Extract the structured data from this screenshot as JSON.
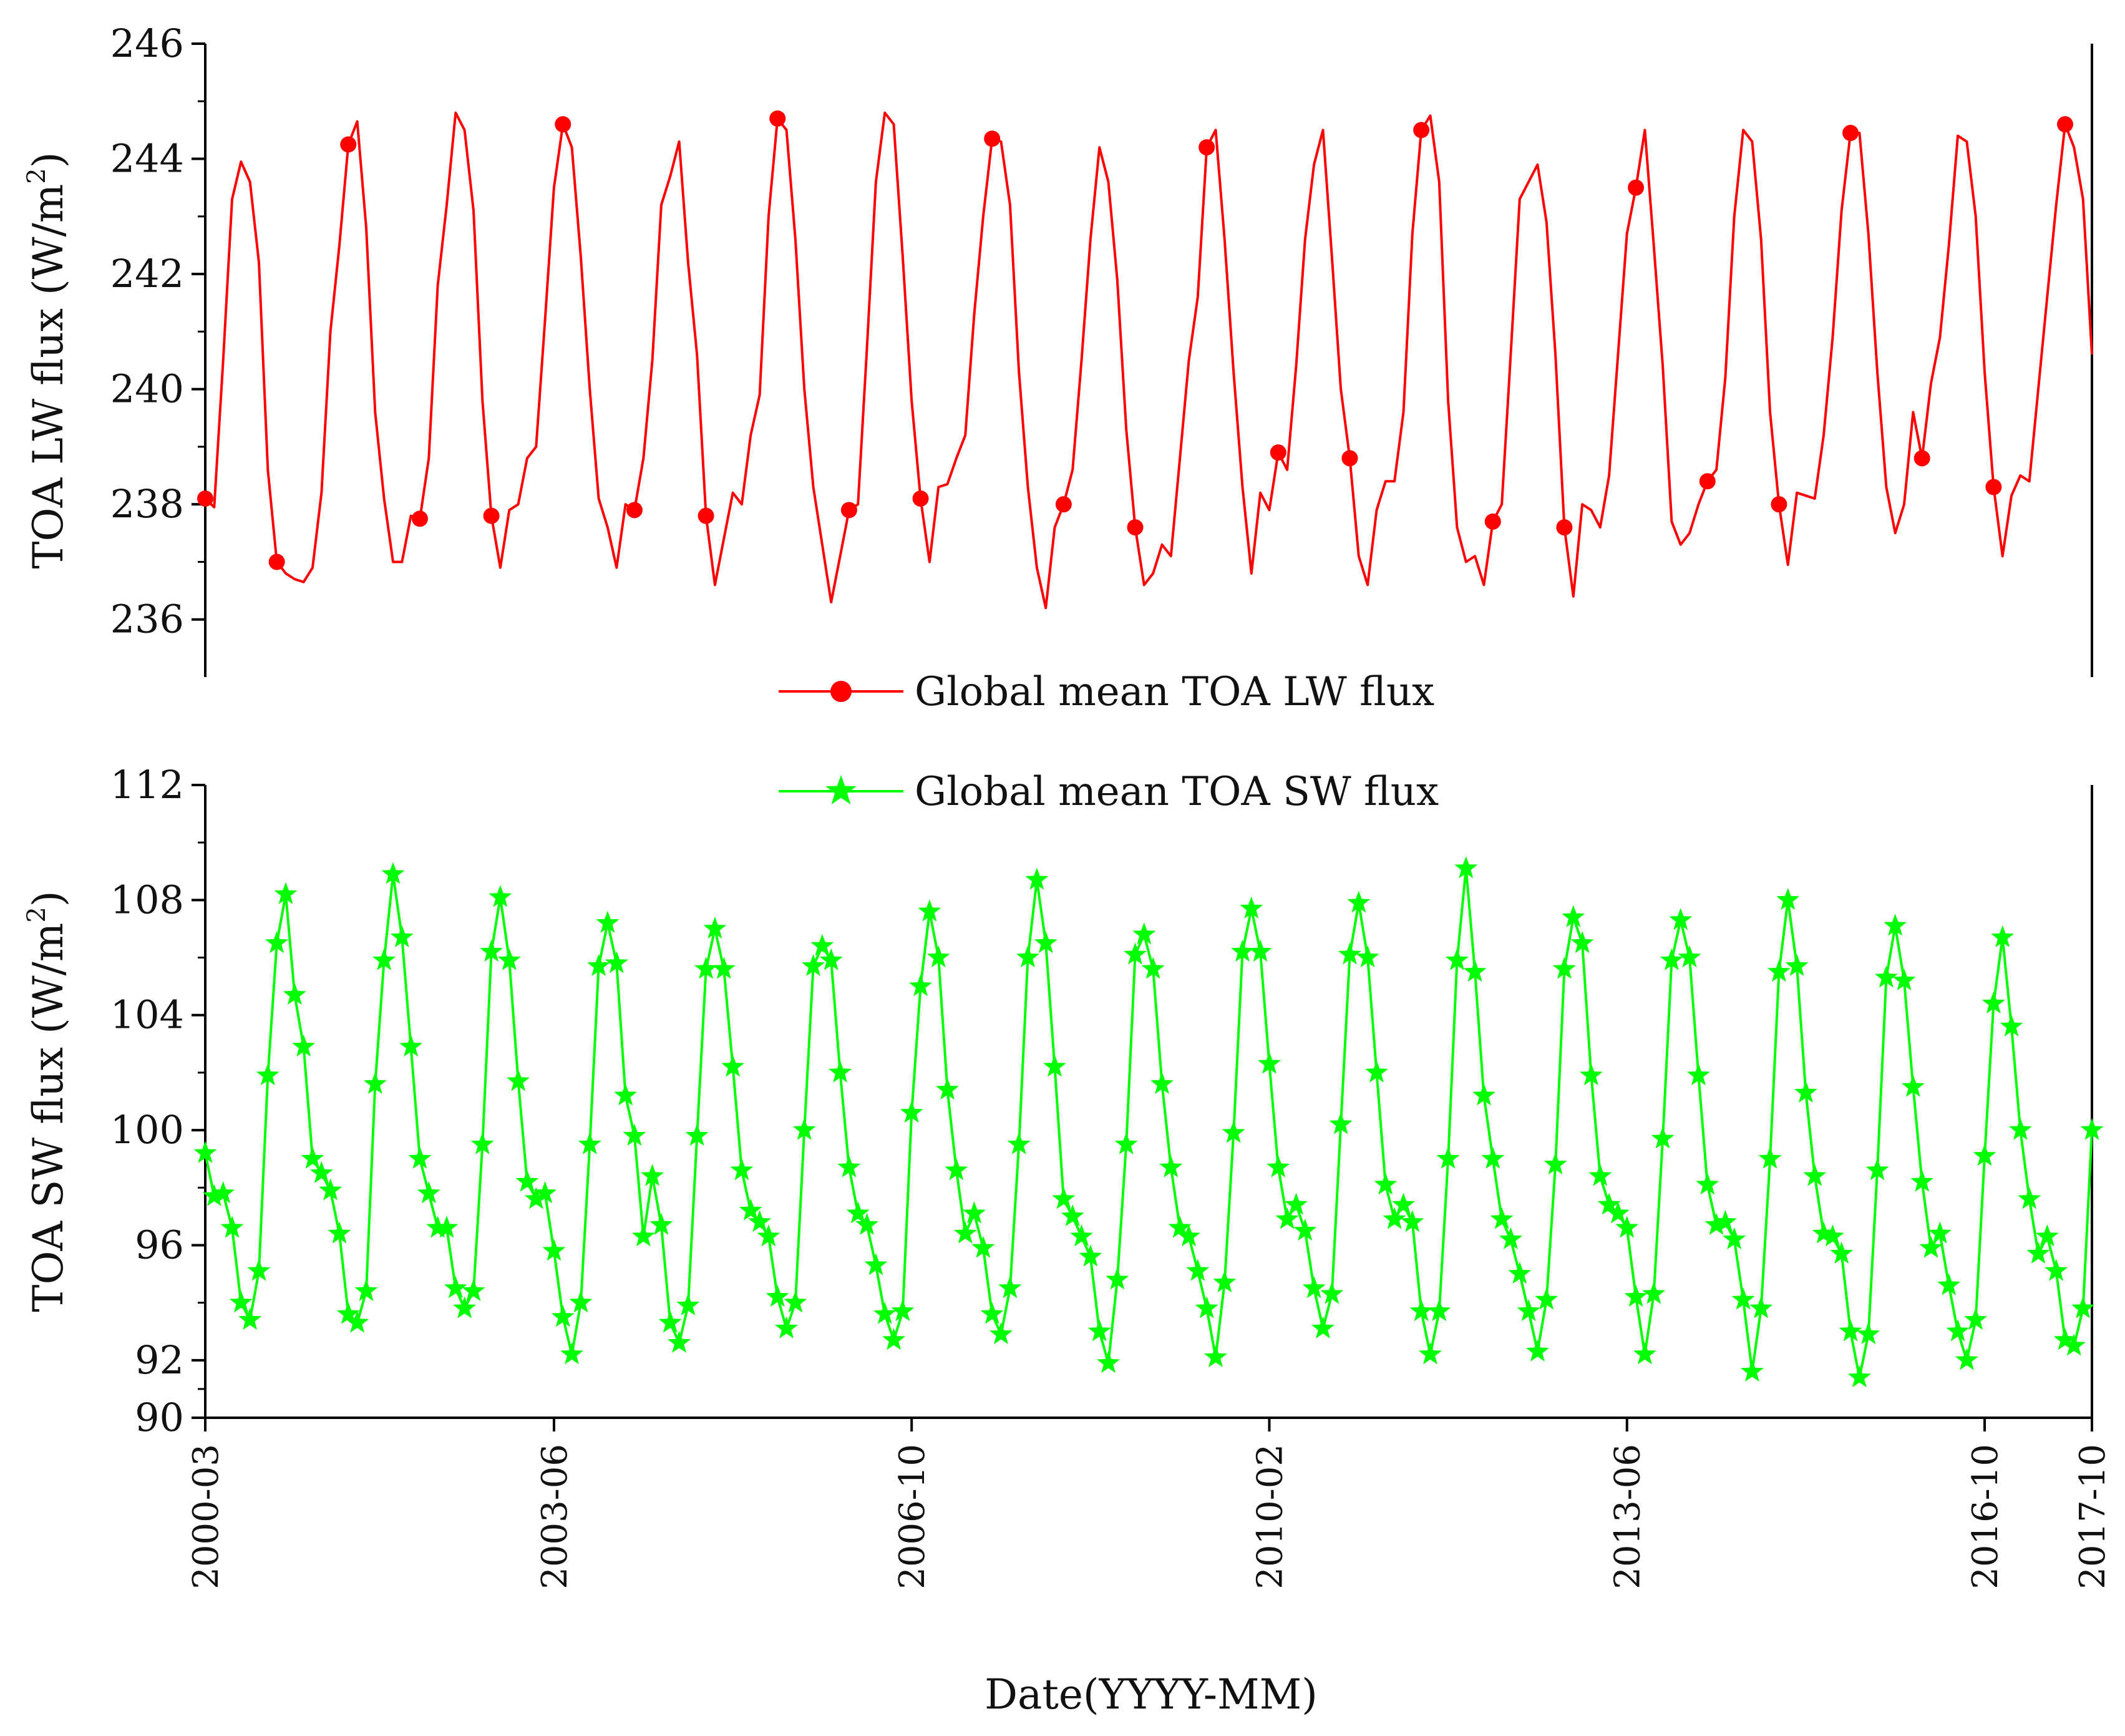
{
  "xlabel": "Date(YYYY-MM)",
  "x_tick_labels": [
    "2000-03",
    "2003-06",
    "2006-10",
    "2010-02",
    "2013-06",
    "2016-10",
    "2017-10"
  ],
  "chart_data": [
    {
      "type": "line",
      "title": "",
      "ylabel": "TOA LW flux (W/m",
      "ylabel_sup": "2",
      "ylabel_close": ")",
      "ylim": [
        235,
        246
      ],
      "yticks": [
        236,
        238,
        240,
        242,
        244,
        246
      ],
      "xlabel": "Date(YYYY-MM)",
      "x_range_months": [
        0,
        211
      ],
      "grid": false,
      "legend_position": "bottom-center",
      "series": [
        {
          "name": "Global mean TOA LW flux",
          "color": "#ff0000",
          "marker": "circle",
          "marker_every": 8,
          "values": [
            238.1,
            237.95,
            240.5,
            243.3,
            243.95,
            243.6,
            242.2,
            238.6,
            237.0,
            236.8,
            236.7,
            236.65,
            236.9,
            238.2,
            241.0,
            242.5,
            244.25,
            244.65,
            242.8,
            239.6,
            238.1,
            237.0,
            237.0,
            237.8,
            237.75,
            238.8,
            241.8,
            243.2,
            244.8,
            244.5,
            243.1,
            239.8,
            237.8,
            236.9,
            237.9,
            238.0,
            238.8,
            239.0,
            241.2,
            243.5,
            244.6,
            244.2,
            242.3,
            240.0,
            238.1,
            237.6,
            236.9,
            238.0,
            237.9,
            238.8,
            240.5,
            243.2,
            243.7,
            244.3,
            242.2,
            240.6,
            237.8,
            236.6,
            237.4,
            238.2,
            238.0,
            239.2,
            239.9,
            243.0,
            244.7,
            244.5,
            242.6,
            240.0,
            238.3,
            237.3,
            236.3,
            237.1,
            237.9,
            238.0,
            240.7,
            243.6,
            244.8,
            244.6,
            242.3,
            239.8,
            238.1,
            237.0,
            238.3,
            238.35,
            238.8,
            239.2,
            241.3,
            243.0,
            244.35,
            244.3,
            243.2,
            240.3,
            238.3,
            236.9,
            236.2,
            237.6,
            238.0,
            238.6,
            240.5,
            242.6,
            244.2,
            243.6,
            241.9,
            239.3,
            237.6,
            236.6,
            236.8,
            237.3,
            237.1,
            238.8,
            240.5,
            241.6,
            244.2,
            244.5,
            242.6,
            240.3,
            238.3,
            236.8,
            238.2,
            237.9,
            238.9,
            238.6,
            240.4,
            242.6,
            243.9,
            244.5,
            242.3,
            240.0,
            238.8,
            237.1,
            236.6,
            237.9,
            238.4,
            238.4,
            239.6,
            242.7,
            244.5,
            244.75,
            243.6,
            239.8,
            237.6,
            237.0,
            237.1,
            236.6,
            237.7,
            238.0,
            240.6,
            243.3,
            243.6,
            243.9,
            242.9,
            240.6,
            237.6,
            236.4,
            238.0,
            237.9,
            237.6,
            238.5,
            240.6,
            242.7,
            243.5,
            244.5,
            242.5,
            240.4,
            237.7,
            237.3,
            237.5,
            238.0,
            238.4,
            238.6,
            240.2,
            243.0,
            244.5,
            244.3,
            242.6,
            239.6,
            238.0,
            236.95,
            238.2,
            238.15,
            238.1,
            239.2,
            240.9,
            243.1,
            244.45,
            244.45,
            242.7,
            240.3,
            238.3,
            237.5,
            238.0,
            239.6,
            238.8,
            240.1,
            240.9,
            242.5,
            244.4,
            244.3,
            243.0,
            240.3,
            238.3,
            237.1,
            238.15,
            238.5,
            238.4,
            240.0,
            241.6,
            243.2,
            244.6,
            244.2,
            243.3,
            240.6
          ]
        }
      ]
    },
    {
      "type": "line",
      "title": "",
      "ylabel": "TOA SW flux (W/m",
      "ylabel_sup": "2",
      "ylabel_close": ")",
      "ylim": [
        90,
        112
      ],
      "yticks": [
        90,
        92,
        96,
        100,
        104,
        108,
        112
      ],
      "xlabel": "Date(YYYY-MM)",
      "x_range_months": [
        0,
        211
      ],
      "grid": false,
      "legend_position": "top-center",
      "series": [
        {
          "name": "Global mean TOA SW flux",
          "color": "#00ff00",
          "marker": "star",
          "marker_every": 1,
          "values": [
            99.2,
            97.7,
            97.8,
            96.6,
            94.0,
            93.4,
            95.1,
            101.9,
            106.5,
            108.2,
            104.7,
            102.9,
            99.0,
            98.5,
            97.9,
            96.4,
            93.6,
            93.3,
            94.4,
            101.6,
            105.9,
            108.9,
            106.7,
            102.9,
            99.0,
            97.8,
            96.6,
            96.6,
            94.5,
            93.8,
            94.4,
            99.5,
            106.2,
            108.1,
            105.9,
            101.7,
            98.2,
            97.6,
            97.8,
            95.8,
            93.5,
            92.2,
            94.0,
            99.5,
            105.7,
            107.2,
            105.8,
            101.2,
            99.8,
            96.3,
            98.4,
            96.7,
            93.3,
            92.6,
            93.9,
            99.8,
            105.6,
            107.0,
            105.6,
            102.2,
            98.6,
            97.2,
            96.8,
            96.3,
            94.2,
            93.1,
            94.0,
            100.0,
            105.7,
            106.4,
            105.9,
            102.0,
            98.7,
            97.1,
            96.7,
            95.3,
            93.6,
            92.7,
            93.7,
            100.6,
            105.0,
            107.6,
            106.0,
            101.4,
            98.6,
            96.4,
            97.1,
            95.9,
            93.6,
            92.9,
            94.5,
            99.5,
            106.0,
            108.7,
            106.5,
            102.2,
            97.6,
            97.0,
            96.3,
            95.6,
            93.0,
            91.9,
            94.8,
            99.5,
            106.1,
            106.8,
            105.6,
            101.6,
            98.7,
            96.6,
            96.3,
            95.1,
            93.8,
            92.1,
            94.7,
            99.9,
            106.2,
            107.7,
            106.2,
            102.3,
            98.7,
            96.9,
            97.4,
            96.5,
            94.5,
            93.1,
            94.3,
            100.2,
            106.1,
            107.9,
            106.0,
            102.0,
            98.1,
            96.9,
            97.4,
            96.8,
            93.7,
            92.2,
            93.7,
            99.0,
            105.9,
            109.1,
            105.5,
            101.2,
            99.0,
            96.9,
            96.2,
            95.0,
            93.7,
            92.3,
            94.1,
            98.8,
            105.6,
            107.4,
            106.5,
            101.9,
            98.4,
            97.4,
            97.1,
            96.6,
            94.2,
            92.2,
            94.3,
            99.7,
            105.9,
            107.3,
            106.0,
            101.9,
            98.1,
            96.7,
            96.8,
            96.2,
            94.1,
            91.6,
            93.8,
            99.0,
            105.5,
            108.0,
            105.7,
            101.3,
            98.4,
            96.4,
            96.3,
            95.7,
            93.0,
            91.4,
            92.9,
            98.6,
            105.3,
            107.1,
            105.2,
            101.5,
            98.2,
            95.9,
            96.4,
            94.6,
            93.0,
            92.0,
            93.4,
            99.1,
            104.4,
            106.7,
            103.6,
            100.0,
            97.6,
            95.7,
            96.3,
            95.1,
            92.7,
            92.5,
            93.8,
            100.0
          ]
        }
      ]
    }
  ]
}
